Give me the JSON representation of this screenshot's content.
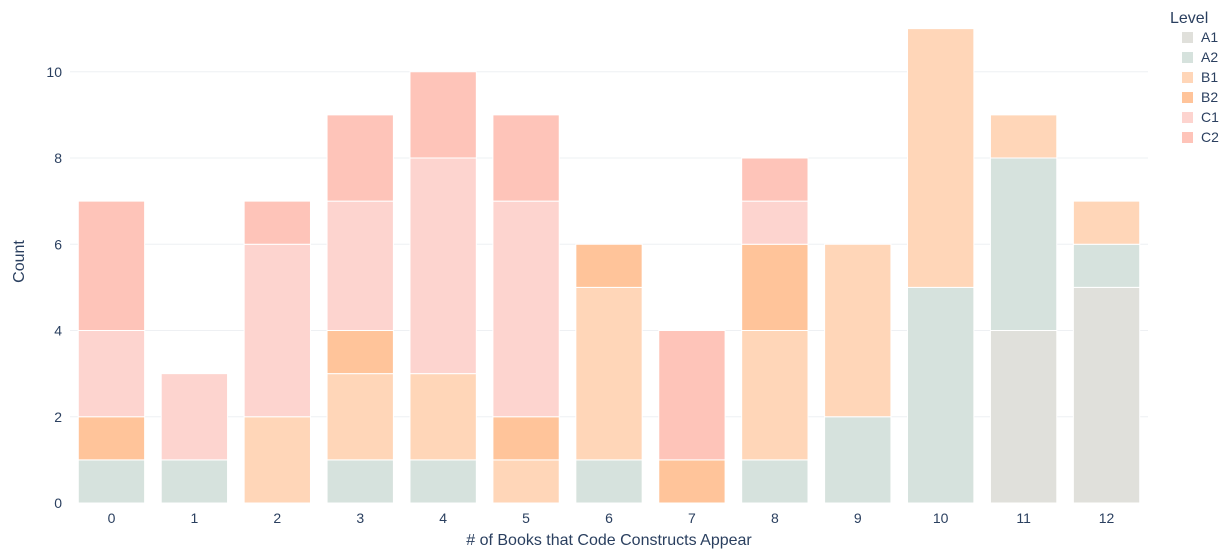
{
  "chart_data": {
    "type": "bar",
    "stacked": true,
    "title": "",
    "xlabel": "# of Books that Code Constructs Appear",
    "ylabel": "Count",
    "categories": [
      "0",
      "1",
      "2",
      "3",
      "4",
      "5",
      "6",
      "7",
      "8",
      "9",
      "10",
      "11",
      "12"
    ],
    "ylim": [
      0,
      11.2
    ],
    "yticks": [
      0,
      2,
      4,
      6,
      8,
      10
    ],
    "grid": true,
    "legend": {
      "title": "Level",
      "placement": "top-right"
    },
    "series": [
      {
        "name": "A1",
        "color": "#e0e0db",
        "values": [
          0,
          0,
          0,
          0,
          0,
          0,
          0,
          0,
          0,
          0,
          0,
          4,
          5
        ]
      },
      {
        "name": "A2",
        "color": "#d6e2dd",
        "values": [
          1,
          1,
          0,
          1,
          1,
          0,
          1,
          0,
          1,
          2,
          5,
          4,
          1
        ]
      },
      {
        "name": "B1",
        "color": "#ffd6b8",
        "values": [
          0,
          0,
          2,
          2,
          2,
          1,
          4,
          0,
          3,
          4,
          6,
          1,
          1
        ]
      },
      {
        "name": "B2",
        "color": "#ffc49a",
        "values": [
          1,
          0,
          0,
          1,
          0,
          1,
          1,
          1,
          2,
          0,
          0,
          0,
          0
        ]
      },
      {
        "name": "C1",
        "color": "#fdd4cf",
        "values": [
          2,
          2,
          4,
          3,
          5,
          5,
          0,
          0,
          1,
          0,
          0,
          0,
          0
        ]
      },
      {
        "name": "C2",
        "color": "#fec4b9",
        "values": [
          3,
          0,
          1,
          2,
          2,
          2,
          0,
          3,
          1,
          0,
          0,
          0,
          0
        ]
      }
    ]
  }
}
